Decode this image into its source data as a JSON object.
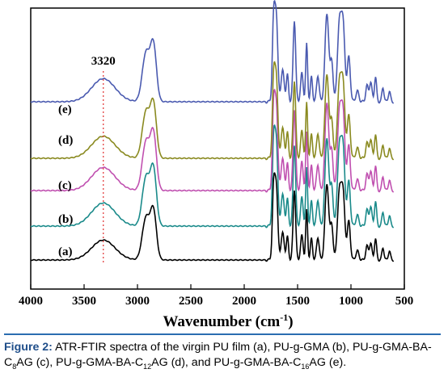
{
  "chart_data": {
    "type": "line",
    "xlabel_main": "Wavenumber (cm",
    "xlabel_sup": "-1",
    "xlabel_close": ")",
    "xlim": [
      4000,
      500
    ],
    "xticks": [
      4000,
      3500,
      3000,
      2500,
      2000,
      1500,
      1000,
      500
    ],
    "annotation": {
      "text": "3320",
      "x": 3320
    },
    "series": [
      {
        "name": "(a)",
        "color": "#000000"
      },
      {
        "name": "(b)",
        "color": "#1a8a8a"
      },
      {
        "name": "(c)",
        "color": "#c050b0"
      },
      {
        "name": "(d)",
        "color": "#8a8a20"
      },
      {
        "name": "(e)",
        "color": "#4a5ab0"
      }
    ]
  },
  "caption": {
    "label": "Figure 2:",
    "text_1": " ATR-FTIR spectra of the virgin PU film (a), PU-g-GMA (b), PU-g-GMA-BA-C",
    "sub_1": "8",
    "text_2": "AG (c), PU-g-GMA-BA-C",
    "sub_2": "12",
    "text_3": "AG (d), and PU-g-GMA-BA-C",
    "sub_3": "16",
    "text_4": "AG (e)."
  }
}
